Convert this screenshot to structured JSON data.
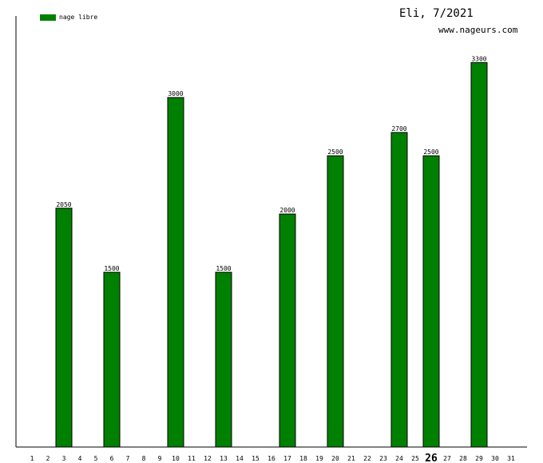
{
  "header": {
    "title": "Eli, 7/2021",
    "site": "www.nageurs.com"
  },
  "legend": {
    "label": "nage libre",
    "color": "#008000"
  },
  "chart_data": {
    "type": "bar",
    "categories": [
      "1",
      "2",
      "3",
      "4",
      "5",
      "6",
      "7",
      "8",
      "9",
      "10",
      "11",
      "12",
      "13",
      "14",
      "15",
      "16",
      "17",
      "18",
      "19",
      "20",
      "21",
      "22",
      "23",
      "24",
      "25",
      "26",
      "27",
      "28",
      "29",
      "30",
      "31"
    ],
    "highlight_category": "26",
    "series": [
      {
        "name": "nage libre",
        "values": [
          0,
          0,
          2050,
          0,
          0,
          1500,
          0,
          0,
          0,
          3000,
          0,
          0,
          1500,
          0,
          0,
          0,
          2000,
          0,
          0,
          2500,
          0,
          0,
          0,
          2700,
          0,
          2500,
          0,
          0,
          3300,
          0,
          0
        ],
        "value_labels": [
          "",
          "",
          "2050",
          "",
          "",
          "1500",
          "",
          "",
          "",
          "3000",
          "",
          "",
          "1500",
          "",
          "",
          "",
          "2000",
          "",
          "",
          "2500",
          "",
          "",
          "",
          "2700",
          "",
          "2500",
          "",
          "",
          "3300",
          "",
          ""
        ]
      }
    ],
    "ylim": [
      0,
      3700
    ],
    "grid": false,
    "legend_position": "top-left",
    "colors": {
      "bar": "#008000",
      "axis": "#000000"
    }
  }
}
